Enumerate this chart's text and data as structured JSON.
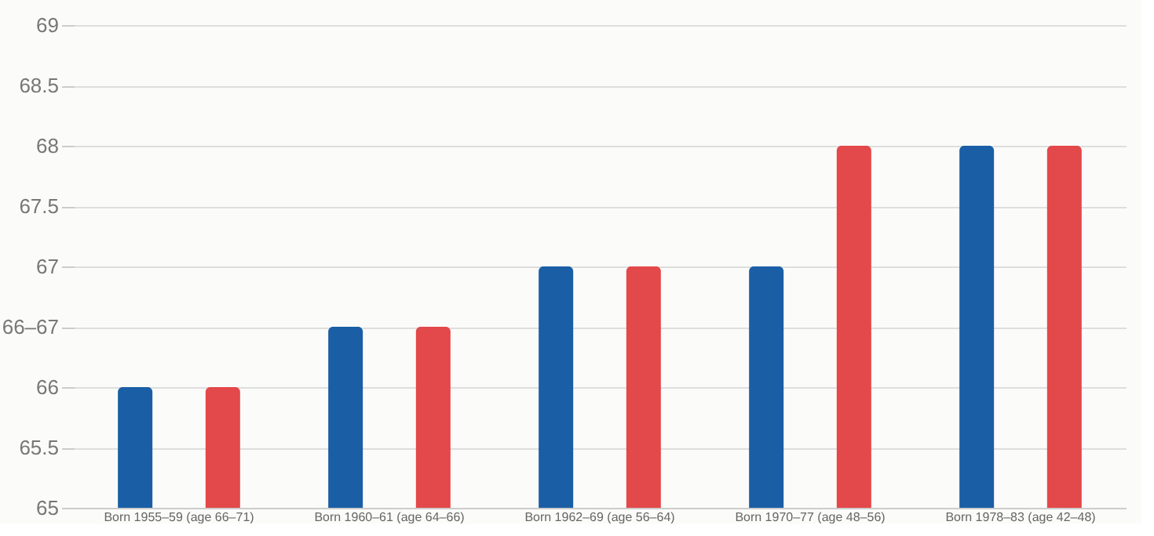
{
  "chart_data": {
    "type": "bar",
    "categories": [
      "Born 1955–59 (age 66–71)",
      "Born 1960–61 (age 64–66)",
      "Born 1962–69 (age 56–64)",
      "Born 1970–77 (age 48–56)",
      "Born 1978–83 (age 42–48)"
    ],
    "series": [
      {
        "color": "#1a5ea6",
        "values": [
          66,
          66.5,
          67,
          67,
          68
        ]
      },
      {
        "color": "#e3484a",
        "values": [
          66,
          66.5,
          67,
          68,
          68
        ]
      }
    ],
    "ylim": [
      65,
      69
    ],
    "yticks": [
      65,
      65.5,
      66,
      {
        "value": 66.5,
        "label": "66–67"
      },
      67,
      67.5,
      68,
      68.5,
      69
    ],
    "grid": "y",
    "legend": false
  }
}
